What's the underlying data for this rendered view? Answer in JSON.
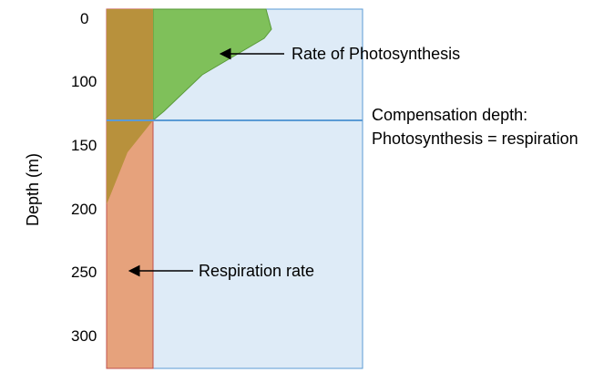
{
  "axis": {
    "ylabel": "Depth (m)",
    "ticks": [
      "0",
      "100",
      "150",
      "200",
      "250",
      "300"
    ]
  },
  "annotations": {
    "photosynthesis": "Rate of Photosynthesis",
    "respiration": "Respiration rate",
    "compensation_line1": "Compensation depth:",
    "compensation_line2": "Photosynthesis = respiration"
  },
  "colors": {
    "water": "#deebf7",
    "water_border": "#5b9bd5",
    "photosynthesis_fill": "#7fc05a",
    "photosynthesis_border": "#5a9a3a",
    "respiration_fill": "#e6a27c",
    "respiration_border": "#c0504d",
    "overlap_fill": "#b8913c",
    "compensation_line": "#5b9bd5",
    "arrow": "#000000"
  }
}
